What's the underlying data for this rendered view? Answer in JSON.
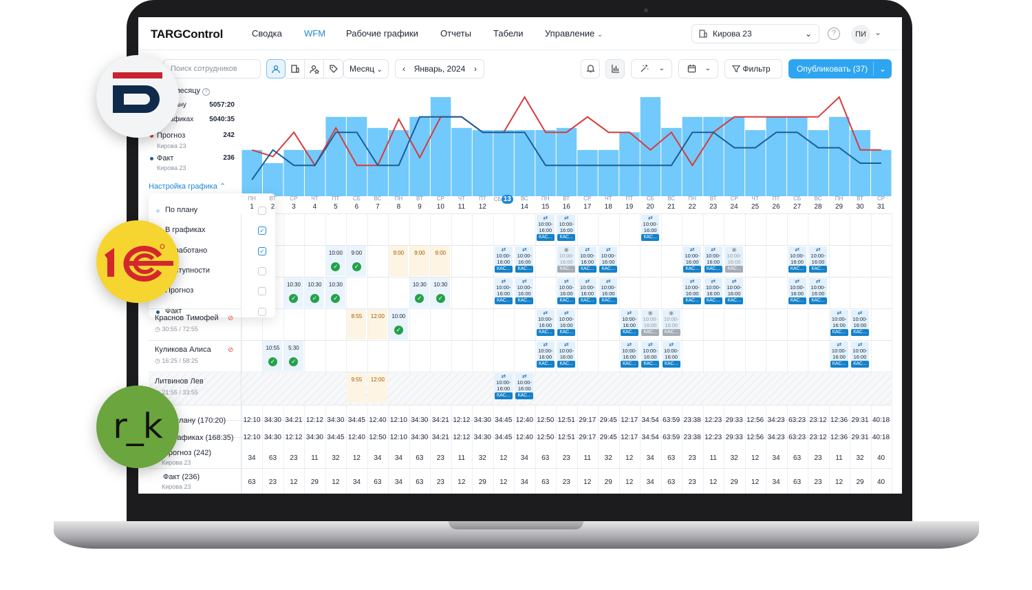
{
  "header": {
    "brand": "TARGControl",
    "nav": [
      {
        "label": "Сводка",
        "active": false
      },
      {
        "label": "WFM",
        "active": true
      },
      {
        "label": "Рабочие графики",
        "active": false
      },
      {
        "label": "Отчеты",
        "active": false
      },
      {
        "label": "Табели",
        "active": false
      },
      {
        "label": "Управление",
        "active": false
      }
    ],
    "store": "Кирова 23",
    "help": "?",
    "user_initials": "ПИ"
  },
  "toolbar": {
    "search_placeholder": "Поиск сотрудников",
    "period_mode": "Месяц",
    "period": "Январь, 2024",
    "filter": "Фильтр",
    "publish": "Опубликовать (37)"
  },
  "summary": {
    "title": "По месяцу",
    "plan_label": "По плану",
    "plan_value": "5057:20",
    "sched_label": "В графиках",
    "sched_value": "5040:35",
    "forecast_label": "Прогноз",
    "forecast_sub": "Кирова 23",
    "forecast_value": "242",
    "fact_label": "Факт",
    "fact_sub": "Кирова 23",
    "fact_value": "236",
    "settings_link": "Настройка графика"
  },
  "settings_dropdown": [
    {
      "label": "По плану",
      "checked": false
    },
    {
      "label": "В графиках",
      "checked": true
    },
    {
      "label": "Отработано",
      "checked": true
    },
    {
      "label": "Поступности",
      "checked": false
    },
    {
      "label": "Прогноз",
      "checked": false
    },
    {
      "label": "Факт",
      "checked": false
    }
  ],
  "colors": {
    "accent": "#1e88d4",
    "bar": "#72c9fb",
    "bar_light": "#d3ebfb",
    "forecast_line": "#d63b3b",
    "fact_line": "#1c5d97",
    "ok": "#24a148"
  },
  "chart_data": {
    "type": "bar",
    "x": [
      1,
      2,
      3,
      4,
      5,
      6,
      7,
      8,
      9,
      10,
      11,
      12,
      13,
      14,
      15,
      16,
      17,
      18,
      19,
      20,
      21,
      22,
      23,
      24,
      25,
      26,
      27,
      28,
      29,
      30,
      31
    ],
    "series": [
      {
        "name": "В графиках",
        "values": [
          42,
          30,
          42,
          42,
          72,
          72,
          62,
          60,
          72,
          90,
          62,
          60,
          60,
          60,
          60,
          62,
          42,
          42,
          58,
          90,
          62,
          72,
          72,
          72,
          60,
          72,
          72,
          60,
          72,
          60,
          42
        ]
      },
      {
        "name": "Прогноз",
        "values": [
          42,
          36,
          58,
          28,
          62,
          28,
          28,
          70,
          35,
          72,
          72,
          58,
          58,
          90,
          58,
          58,
          72,
          58,
          58,
          42,
          58,
          28,
          58,
          72,
          72,
          72,
          72,
          72,
          90,
          42,
          42
        ]
      },
      {
        "name": "Факт",
        "values": [
          15,
          42,
          28,
          28,
          58,
          58,
          28,
          28,
          72,
          72,
          72,
          58,
          58,
          58,
          28,
          28,
          28,
          28,
          28,
          28,
          28,
          58,
          58,
          44,
          44,
          58,
          58,
          44,
          44,
          30,
          30
        ]
      }
    ],
    "bar_light": [
      0,
      0,
      0,
      0,
      0,
      72,
      0,
      0,
      0,
      0,
      0,
      0,
      0,
      0,
      0,
      0,
      0,
      42,
      0,
      0,
      0,
      72,
      0,
      0,
      0,
      0,
      0,
      60,
      0,
      0,
      0
    ],
    "ylim": [
      0,
      100
    ]
  },
  "days": [
    {
      "dow": "ПН",
      "d": "1"
    },
    {
      "dow": "ВТ",
      "d": "2"
    },
    {
      "dow": "СР",
      "d": "3"
    },
    {
      "dow": "ЧТ",
      "d": "4"
    },
    {
      "dow": "ПТ",
      "d": "5"
    },
    {
      "dow": "СБ",
      "d": "6"
    },
    {
      "dow": "ВС",
      "d": "7"
    },
    {
      "dow": "ПН",
      "d": "8"
    },
    {
      "dow": "ВТ",
      "d": "9"
    },
    {
      "dow": "СР",
      "d": "10"
    },
    {
      "dow": "ЧТ",
      "d": "11"
    },
    {
      "dow": "ПТ",
      "d": "12"
    },
    {
      "dow": "СБ",
      "d": "13"
    },
    {
      "dow": "ВС",
      "d": "14"
    },
    {
      "dow": "ПН",
      "d": "15"
    },
    {
      "dow": "ВТ",
      "d": "16"
    },
    {
      "dow": "СР",
      "d": "17"
    },
    {
      "dow": "ЧТ",
      "d": "18"
    },
    {
      "dow": "ПТ",
      "d": "19"
    },
    {
      "dow": "СБ",
      "d": "20"
    },
    {
      "dow": "ВС",
      "d": "21"
    },
    {
      "dow": "ПН",
      "d": "22"
    },
    {
      "dow": "ВТ",
      "d": "23"
    },
    {
      "dow": "СР",
      "d": "24"
    },
    {
      "dow": "ЧТ",
      "d": "25"
    },
    {
      "dow": "ПТ",
      "d": "26"
    },
    {
      "dow": "СБ",
      "d": "27"
    },
    {
      "dow": "ВС",
      "d": "28"
    },
    {
      "dow": "ПН",
      "d": "29"
    },
    {
      "dow": "ВТ",
      "d": "30"
    },
    {
      "dow": "СР",
      "d": "31"
    }
  ],
  "today_index": 12,
  "shift_text": {
    "time": "10:00-16:00",
    "role": "КАС..."
  },
  "employees": [
    {
      "name": "Краснов Тимофей",
      "hours": "30:55 / 72:55"
    },
    {
      "name": "Куликова Алиса",
      "hours": "16:25 / 58:25"
    },
    {
      "name": "Литвинов Лев",
      "hours": "21:55 / 33:55"
    }
  ],
  "time_cells": [
    {
      "row": 1,
      "day": 5,
      "t": "10:00",
      "ok": true,
      "c": "b"
    },
    {
      "row": 1,
      "day": 6,
      "t": "9:00",
      "ok": true,
      "c": "b"
    },
    {
      "row": 1,
      "day": 8,
      "t": "9:00",
      "ok": false,
      "c": "o"
    },
    {
      "row": 1,
      "day": 9,
      "t": "9:00",
      "ok": false,
      "c": "o"
    },
    {
      "row": 1,
      "day": 10,
      "t": "9:00",
      "ok": false,
      "c": "o"
    },
    {
      "row": 2,
      "day": 3,
      "t": "10:30",
      "ok": true,
      "c": "b"
    },
    {
      "row": 2,
      "day": 4,
      "t": "10:30",
      "ok": true,
      "c": "b"
    },
    {
      "row": 2,
      "day": 5,
      "t": "10:30",
      "ok": true,
      "c": "b"
    },
    {
      "row": 2,
      "day": 9,
      "t": "10:30",
      "ok": true,
      "c": "b"
    },
    {
      "row": 2,
      "day": 10,
      "t": "10:30",
      "ok": true,
      "c": "b"
    },
    {
      "row": 3,
      "day": 6,
      "t": "8:55",
      "ok": false,
      "c": "o"
    },
    {
      "row": 3,
      "day": 7,
      "t": "12:00",
      "ok": false,
      "c": "o"
    },
    {
      "row": 3,
      "day": 8,
      "t": "10:00",
      "ok": true,
      "c": "b"
    },
    {
      "row": 4,
      "day": 2,
      "t": "10:55",
      "ok": true,
      "c": "b"
    },
    {
      "row": 4,
      "day": 3,
      "t": "5:30",
      "ok": true,
      "c": "b"
    },
    {
      "row": 5,
      "day": 6,
      "t": "9:55",
      "ok": false,
      "c": "o"
    },
    {
      "row": 5,
      "day": 7,
      "t": "12:00",
      "ok": false,
      "c": "o"
    }
  ],
  "shifts": [
    [
      0,
      15,
      "b"
    ],
    [
      0,
      16,
      "b"
    ],
    [
      0,
      20,
      "b"
    ],
    [
      1,
      13,
      "b"
    ],
    [
      1,
      14,
      "b"
    ],
    [
      1,
      16,
      "g"
    ],
    [
      1,
      17,
      "b"
    ],
    [
      1,
      18,
      "b"
    ],
    [
      1,
      22,
      "b"
    ],
    [
      1,
      23,
      "b"
    ],
    [
      1,
      24,
      "g"
    ],
    [
      1,
      27,
      "b"
    ],
    [
      1,
      28,
      "b"
    ],
    [
      2,
      13,
      "b"
    ],
    [
      2,
      14,
      "b"
    ],
    [
      2,
      16,
      "b"
    ],
    [
      2,
      17,
      "b"
    ],
    [
      2,
      18,
      "b"
    ],
    [
      2,
      22,
      "b"
    ],
    [
      2,
      23,
      "b"
    ],
    [
      2,
      24,
      "b"
    ],
    [
      2,
      27,
      "b"
    ],
    [
      2,
      28,
      "b"
    ],
    [
      3,
      15,
      "b"
    ],
    [
      3,
      16,
      "b"
    ],
    [
      3,
      19,
      "b"
    ],
    [
      3,
      20,
      "g"
    ],
    [
      3,
      21,
      "g"
    ],
    [
      3,
      29,
      "b"
    ],
    [
      3,
      30,
      "b"
    ],
    [
      4,
      15,
      "b"
    ],
    [
      4,
      16,
      "b"
    ],
    [
      4,
      19,
      "b"
    ],
    [
      4,
      20,
      "b"
    ],
    [
      4,
      21,
      "b"
    ],
    [
      4,
      29,
      "b"
    ],
    [
      4,
      30,
      "b"
    ],
    [
      5,
      13,
      "b"
    ],
    [
      5,
      14,
      "b"
    ]
  ],
  "totals": [
    {
      "label": "По плану (170:20)",
      "sub": "",
      "values": [
        "12:10",
        "34:30",
        "34:21",
        "12:12",
        "34:30",
        "34:45",
        "12:40",
        "12:10",
        "34:30",
        "34:21",
        "12:12",
        "34:30",
        "34:45",
        "12:40",
        "12:50",
        "12:51",
        "29:17",
        "29:45",
        "12:17",
        "34:54",
        "63:59",
        "23:38",
        "12:23",
        "29:33",
        "12:56",
        "34:23",
        "63:23",
        "23:12",
        "12:36",
        "29:31",
        "40:18"
      ]
    },
    {
      "label": "В графиках (168:35)",
      "sub": "",
      "values": [
        "12:10",
        "34:30",
        "12:12",
        "34:30",
        "34:45",
        "12:40",
        "12:50",
        "12:10",
        "34:30",
        "34:21",
        "12:12",
        "34:30",
        "34:45",
        "12:40",
        "12:50",
        "12:51",
        "29:17",
        "29:45",
        "12:17",
        "34:54",
        "63:59",
        "23:38",
        "12:23",
        "29:33",
        "12:56",
        "34:23",
        "63:23",
        "23:12",
        "12:36",
        "29:31",
        "40:18"
      ]
    },
    {
      "label": "Прогноз (242)",
      "sub": "Кирова 23",
      "values": [
        "34",
        "63",
        "23",
        "11",
        "32",
        "12",
        "34",
        "34",
        "63",
        "23",
        "11",
        "32",
        "12",
        "34",
        "63",
        "23",
        "11",
        "32",
        "12",
        "34",
        "63",
        "23",
        "11",
        "32",
        "12",
        "34",
        "63",
        "23",
        "11",
        "32",
        "40"
      ]
    },
    {
      "label": "Факт (236)",
      "sub": "Кирова 23",
      "values": [
        "63",
        "23",
        "12",
        "29",
        "12",
        "34",
        "63",
        "34",
        "63",
        "23",
        "12",
        "29",
        "12",
        "34",
        "63",
        "23",
        "12",
        "29",
        "12",
        "34",
        "63",
        "23",
        "12",
        "29",
        "12",
        "34",
        "63",
        "23",
        "12",
        "29",
        "40"
      ]
    }
  ],
  "logos": {
    "onec_text": "1С",
    "rk_text": "r_k"
  }
}
